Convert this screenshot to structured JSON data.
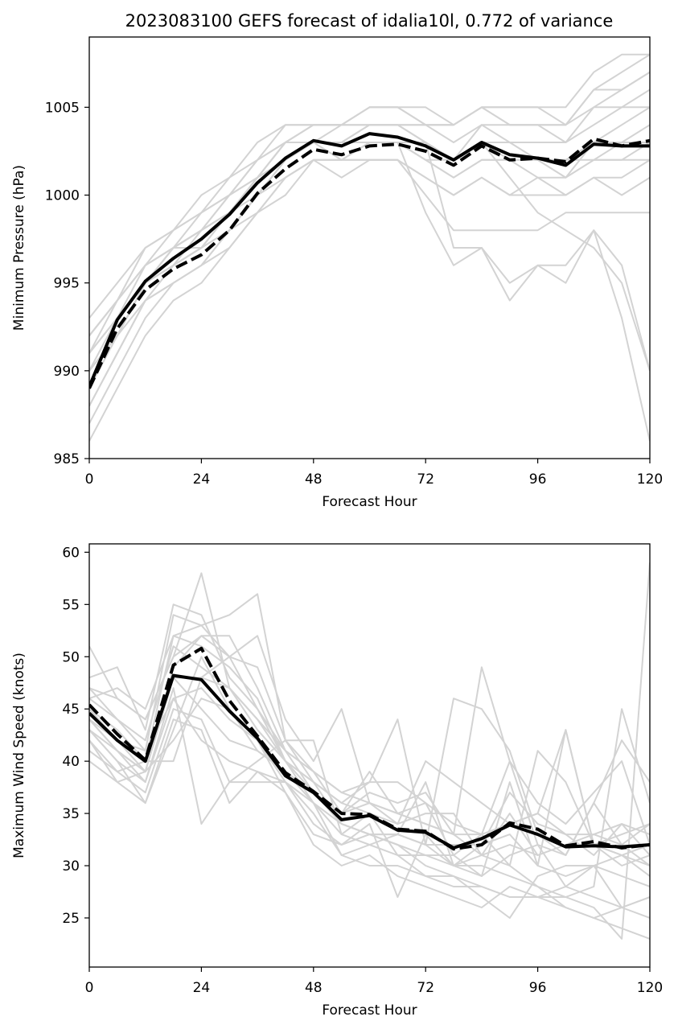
{
  "title": "2023083100 GEFS forecast of idalia10l, 0.772 of variance",
  "colors": {
    "member": "#d3d3d3",
    "mean": "#000000",
    "mode": "#000000",
    "axes": "#000000",
    "background": "#ffffff"
  },
  "chart_data": [
    {
      "type": "line",
      "xlabel": "Forecast Hour",
      "ylabel": "Minimum Pressure (hPa)",
      "xlim": [
        0,
        120
      ],
      "ylim": [
        985,
        1009
      ],
      "xticks": [
        0,
        24,
        48,
        72,
        96,
        120
      ],
      "yticks": [
        985,
        990,
        995,
        1000,
        1005
      ],
      "x": [
        0,
        6,
        12,
        18,
        24,
        30,
        36,
        42,
        48,
        54,
        60,
        66,
        72,
        78,
        84,
        90,
        96,
        102,
        108,
        114,
        120
      ],
      "series": [
        {
          "style": "solid",
          "color": "#000000",
          "values": [
            989.1,
            992.9,
            995.1,
            996.4,
            997.5,
            998.9,
            1000.7,
            1002.1,
            1003.1,
            1002.8,
            1003.5,
            1003.3,
            1002.8,
            1002.0,
            1003.0,
            1002.3,
            1002.1,
            1001.7,
            1002.9,
            1002.8,
            1002.8
          ]
        },
        {
          "style": "dashed",
          "color": "#000000",
          "values": [
            989.0,
            992.4,
            994.6,
            995.8,
            996.6,
            998.0,
            1000.1,
            1001.5,
            1002.6,
            1002.3,
            1002.8,
            1002.9,
            1002.5,
            1001.7,
            1002.8,
            1002.0,
            1002.1,
            1001.9,
            1003.2,
            1002.8,
            1003.1
          ]
        }
      ],
      "members": [
        [
          993,
          995,
          997,
          998,
          999,
          1000,
          1002,
          1003,
          1004,
          1004,
          1005,
          1005,
          1005,
          1004,
          1005,
          1005,
          1005,
          1005,
          1007,
          1008,
          1008
        ],
        [
          992,
          994,
          996,
          997,
          998,
          1000,
          1001,
          1003,
          1004,
          1004,
          1005,
          1005,
          1004,
          1004,
          1005,
          1004,
          1004,
          1004,
          1006,
          1007,
          1008
        ],
        [
          991,
          993,
          996,
          997,
          998,
          999,
          1001,
          1003,
          1003,
          1004,
          1004,
          1004,
          1004,
          1003,
          1004,
          1004,
          1004,
          1003,
          1005,
          1006,
          1007
        ],
        [
          990,
          993,
          995,
          997,
          997,
          999,
          1001,
          1002,
          1003,
          1003,
          1004,
          1004,
          1003,
          1002,
          1004,
          1003,
          1003,
          1003,
          1004,
          1005,
          1006
        ],
        [
          990,
          992,
          995,
          996,
          997,
          999,
          1000,
          1002,
          1003,
          1003,
          1003,
          1003,
          1003,
          1002,
          1003,
          1003,
          1002,
          1002,
          1003,
          1004,
          1005
        ],
        [
          989,
          992,
          994,
          996,
          997,
          998,
          1000,
          1002,
          1003,
          1003,
          1003,
          1003,
          1002,
          1001,
          1002,
          1002,
          1002,
          1001,
          1002,
          1003,
          1004
        ],
        [
          988,
          991,
          994,
          995,
          996,
          998,
          1000,
          1001,
          1002,
          1002,
          1003,
          1003,
          1002,
          1001,
          1002,
          1002,
          1001,
          1001,
          1002,
          1002,
          1003
        ],
        [
          987,
          990,
          993,
          995,
          996,
          997,
          999,
          1001,
          1002,
          1002,
          1002,
          1002,
          1001,
          1000,
          1001,
          1000,
          1000,
          1000,
          1001,
          1001,
          1002
        ],
        [
          986,
          989,
          992,
          994,
          995,
          997,
          999,
          1000,
          1002,
          1001,
          1002,
          1002,
          1000,
          998,
          998,
          998,
          998,
          999,
          999,
          999,
          999
        ],
        [
          991,
          994,
          996,
          998,
          999,
          1000,
          1002,
          1003,
          1003,
          1003,
          1004,
          1004,
          1003,
          997,
          997,
          995,
          996,
          996,
          998,
          996,
          990
        ],
        [
          989,
          993,
          995,
          996,
          998,
          999,
          1001,
          1002,
          1003,
          1002,
          1003,
          1003,
          999,
          996,
          997,
          994,
          996,
          995,
          998,
          993,
          986
        ],
        [
          990,
          992,
          995,
          997,
          998,
          999,
          1001,
          1003,
          1003,
          1003,
          1003,
          1003,
          1002,
          1002,
          1003,
          1001,
          999,
          998,
          997,
          995,
          990
        ],
        [
          992,
          994,
          996,
          997,
          999,
          1001,
          1002,
          1004,
          1004,
          1004,
          1004,
          1004,
          1004,
          1004,
          1005,
          1005,
          1005,
          1004,
          1006,
          1006,
          1007
        ],
        [
          991,
          993,
          995,
          997,
          998,
          1000,
          1001,
          1002,
          1003,
          1003,
          1003,
          1003,
          1003,
          1002,
          1003,
          1002,
          1002,
          1002,
          1002,
          1002,
          1002
        ],
        [
          988,
          991,
          994,
          995,
          996,
          998,
          999,
          1001,
          1002,
          1002,
          1002,
          1002,
          1001,
          1000,
          1001,
          1000,
          1001,
          1000,
          1001,
          1000,
          1001
        ],
        [
          992,
          994,
          997,
          998,
          1000,
          1001,
          1003,
          1004,
          1004,
          1004,
          1005,
          1005,
          1004,
          1004,
          1005,
          1004,
          1004,
          1004,
          1005,
          1005,
          1005
        ],
        [
          990,
          992,
          995,
          996,
          997,
          998,
          1000,
          1002,
          1003,
          1003,
          1003,
          1003,
          1003,
          1002,
          1003,
          1003,
          1002,
          1001,
          1003,
          1003,
          1003
        ]
      ]
    },
    {
      "type": "line",
      "xlabel": "Forecast Hour",
      "ylabel": "Maximum Wind Speed (knots)",
      "xlim": [
        0,
        120
      ],
      "ylim": [
        20.3,
        60.8
      ],
      "xticks": [
        0,
        24,
        48,
        72,
        96,
        120
      ],
      "yticks": [
        25,
        30,
        35,
        40,
        45,
        50,
        55,
        60
      ],
      "x": [
        0,
        6,
        12,
        18,
        24,
        30,
        36,
        42,
        48,
        54,
        60,
        66,
        72,
        78,
        84,
        90,
        96,
        102,
        108,
        114,
        120
      ],
      "series": [
        {
          "style": "solid",
          "color": "#000000",
          "values": [
            44.6,
            42.0,
            40.0,
            48.2,
            47.8,
            44.8,
            42.2,
            38.6,
            37.0,
            34.4,
            34.8,
            33.4,
            33.2,
            31.7,
            32.6,
            33.9,
            33.0,
            31.8,
            31.9,
            31.8,
            32.0
          ]
        },
        {
          "style": "dashed",
          "color": "#000000",
          "values": [
            45.4,
            42.6,
            40.1,
            49.2,
            50.8,
            45.8,
            42.4,
            38.9,
            37.1,
            35.0,
            34.9,
            33.5,
            33.3,
            31.6,
            32.0,
            34.1,
            33.5,
            31.9,
            32.3,
            31.7,
            32.0
          ]
        }
      ],
      "members": [
        [
          51,
          46,
          44,
          50,
          58,
          47,
          44,
          40,
          38,
          34,
          33,
          32,
          30,
          29,
          28,
          27,
          27,
          27,
          26,
          23,
          59
        ],
        [
          48,
          49,
          43,
          55,
          54,
          48,
          45,
          41,
          39,
          37,
          36,
          35,
          34,
          33,
          49,
          40,
          36,
          34,
          37,
          40,
          32
        ],
        [
          47,
          46,
          44,
          50,
          52,
          50,
          52,
          44,
          40,
          45,
          36,
          34,
          40,
          38,
          36,
          34,
          35,
          43,
          32,
          31,
          29
        ],
        [
          46,
          44,
          41,
          54,
          53,
          54,
          56,
          42,
          38,
          36,
          38,
          44,
          32,
          46,
          45,
          41,
          33,
          31,
          36,
          42,
          38
        ],
        [
          45,
          43,
          40,
          52,
          51,
          49,
          46,
          40,
          37,
          35,
          39,
          35,
          36,
          31,
          33,
          30,
          28,
          27,
          28,
          45,
          36
        ],
        [
          45,
          42,
          39,
          49,
          52,
          52,
          47,
          41,
          37,
          34,
          33,
          32,
          31,
          30,
          30,
          29,
          28,
          26,
          25,
          26,
          25
        ],
        [
          44,
          41,
          39,
          48,
          48,
          50,
          45,
          40,
          38,
          36,
          35,
          34,
          35,
          35,
          31,
          30,
          41,
          38,
          32,
          33,
          34
        ],
        [
          44,
          41,
          38,
          47,
          34,
          38,
          40,
          42,
          42,
          33,
          32,
          31,
          29,
          28,
          28,
          27,
          27,
          26,
          25,
          24,
          23
        ],
        [
          43,
          40,
          38,
          46,
          42,
          40,
          39,
          38,
          35,
          31,
          32,
          33,
          38,
          30,
          31,
          35,
          31,
          32,
          33,
          32,
          30
        ],
        [
          43,
          40,
          36,
          44,
          43,
          36,
          39,
          37,
          32,
          30,
          31,
          29,
          28,
          27,
          26,
          28,
          27,
          28,
          27,
          26,
          27
        ],
        [
          42,
          39,
          37,
          45,
          44,
          38,
          38,
          38,
          34,
          32,
          34,
          27,
          33,
          30,
          32,
          33,
          30,
          29,
          30,
          31,
          30
        ],
        [
          42,
          38,
          36,
          43,
          50,
          45,
          42,
          37,
          33,
          32,
          33,
          33,
          32,
          30,
          29,
          38,
          30,
          43,
          32,
          30,
          31
        ],
        [
          41,
          39,
          40,
          40,
          48,
          47,
          43,
          40,
          36,
          33,
          35,
          31,
          31,
          31,
          29,
          31,
          32,
          28,
          30,
          29,
          28
        ],
        [
          40,
          38,
          39,
          42,
          46,
          45,
          41,
          39,
          36,
          31,
          30,
          30,
          29,
          29,
          27,
          25,
          29,
          30,
          30,
          26,
          27
        ],
        [
          46,
          47,
          45,
          52,
          53,
          50,
          49,
          42,
          39,
          37,
          38,
          38,
          36,
          34,
          33,
          34,
          35,
          33,
          33,
          34,
          33
        ],
        [
          47,
          44,
          42,
          51,
          49,
          47,
          44,
          41,
          39,
          35,
          37,
          36,
          37,
          33,
          33,
          40,
          32,
          31,
          36,
          32,
          34
        ],
        [
          44,
          42,
          41,
          46,
          47,
          44,
          42,
          38,
          36,
          34,
          33,
          33,
          32,
          32,
          32,
          37,
          34,
          33,
          31,
          34,
          31
        ],
        [
          43,
          41,
          39,
          48,
          45,
          42,
          41,
          39,
          37,
          35,
          36,
          35,
          34,
          33,
          31,
          32,
          31,
          32,
          32,
          31,
          32
        ]
      ]
    }
  ]
}
